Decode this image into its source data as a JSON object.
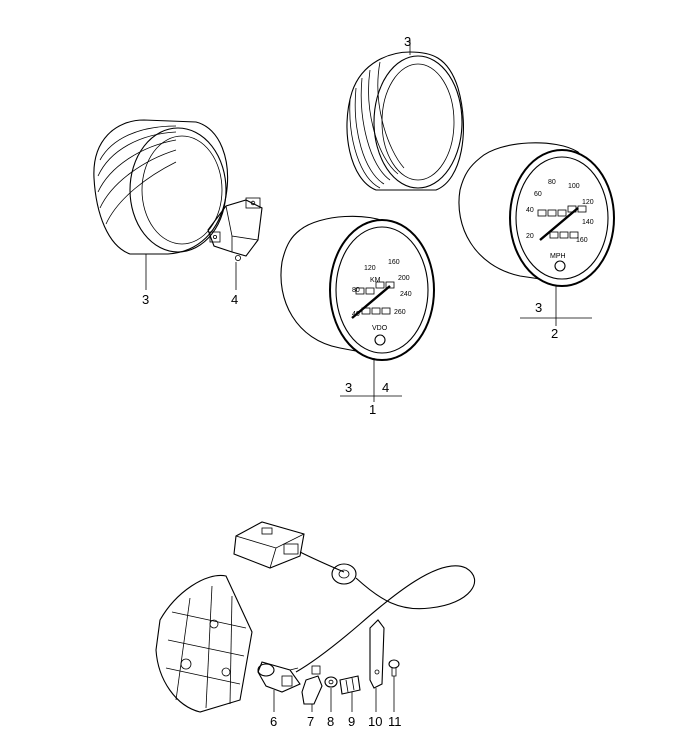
{
  "callouts": {
    "ring_top": "3",
    "ring_left": "3",
    "bracket": "4",
    "set1_a": "3",
    "set1_b": "4",
    "set1": "1",
    "set2_a": "3",
    "set2": "2",
    "p6": "6",
    "p7": "7",
    "p8": "8",
    "p9": "9",
    "p10": "10",
    "p11": "11"
  },
  "speedo_kmh": {
    "unit": "KM",
    "brand": "VDO",
    "ticks": [
      "40",
      "80",
      "120",
      "160",
      "200",
      "240",
      "260"
    ]
  },
  "speedo_mph": {
    "unit": "MPH",
    "ticks": [
      "20",
      "40",
      "60",
      "80",
      "100",
      "120",
      "140",
      "160"
    ]
  }
}
